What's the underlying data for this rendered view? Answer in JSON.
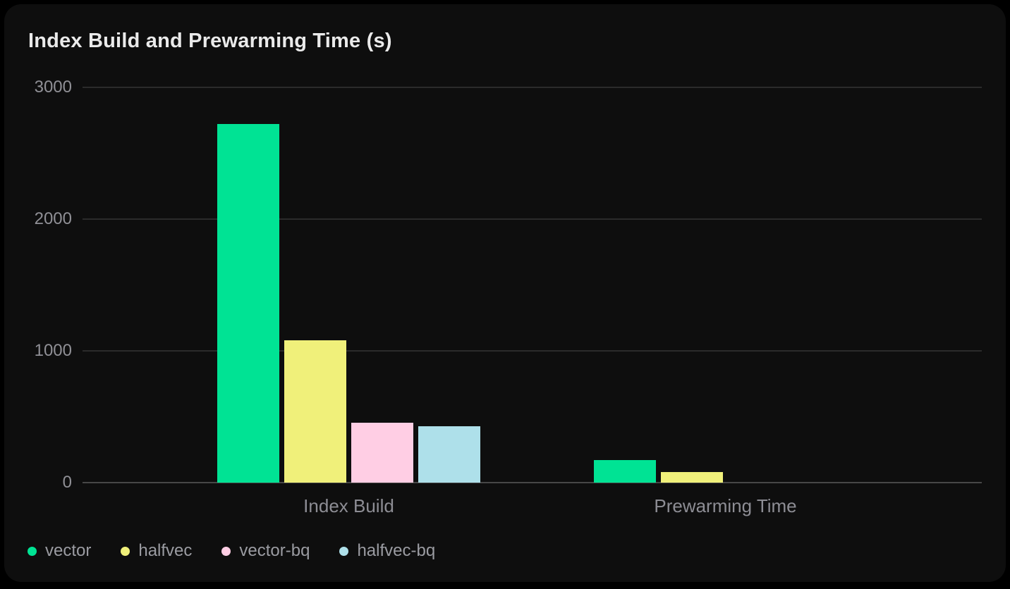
{
  "chart": {
    "title": "Index Build and Prewarming Time (s)"
  },
  "chart_data": {
    "type": "bar",
    "title": "Index Build and Prewarming Time (s)",
    "categories": [
      "Index Build",
      "Prewarming Time"
    ],
    "series": [
      {
        "name": "vector",
        "color": "#00e394",
        "values": [
          2720,
          170
        ]
      },
      {
        "name": "halfvec",
        "color": "#f0f07a",
        "values": [
          1080,
          78
        ]
      },
      {
        "name": "vector-bq",
        "color": "#ffcee4",
        "values": [
          455,
          0
        ]
      },
      {
        "name": "halfvec-bq",
        "color": "#aee0ea",
        "values": [
          430,
          0
        ]
      }
    ],
    "xlabel": "",
    "ylabel": "",
    "y_ticks": [
      3000,
      2000,
      1000,
      0
    ],
    "ylim": [
      0,
      3000
    ],
    "grid": true,
    "legend_position": "bottom-left",
    "panel_background": "#0e0e0e",
    "outer_background": "#000000",
    "gridline_color": "#2b2b2b",
    "zero_line_color": "#474747",
    "title_color": "#eaeaea",
    "axis_label_color": "#8d8d94",
    "legend_text_color": "#9b9ca2"
  }
}
